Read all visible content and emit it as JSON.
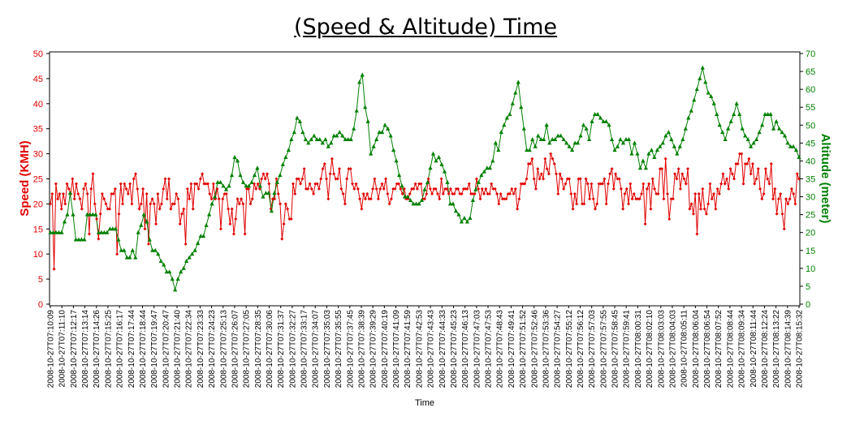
{
  "chart_data": {
    "type": "line",
    "title": "(Speed & Altitude) Time",
    "xlabel": "Time",
    "ylabel_left": "Speed (KMH)",
    "ylabel_right": "Altitude (meter)",
    "ylim_left": [
      0,
      50
    ],
    "ylim_right": [
      0,
      70
    ],
    "yticks_left": [
      0,
      5,
      10,
      15,
      20,
      25,
      30,
      35,
      40,
      45,
      50
    ],
    "yticks_right": [
      0,
      5,
      10,
      15,
      20,
      25,
      30,
      35,
      40,
      45,
      50,
      55,
      60,
      65,
      70
    ],
    "grid": false,
    "colors": {
      "speed": "#e00000",
      "altitude": "#008000"
    },
    "x_tick_labels": [
      "2008-10-27T07:10:09",
      "2008-10-27T07:11:10",
      "2008-10-27T07:12:17",
      "2008-10-27T07:13:14",
      "2008-10-27T07:14:26",
      "2008-10-27T07:15:25",
      "2008-10-27T07:16:17",
      "2008-10-27T07:17:44",
      "2008-10-27T07:18:44",
      "2008-10-27T07:19:47",
      "2008-10-27T07:20:47",
      "2008-10-27T07:21:40",
      "2008-10-27T07:22:34",
      "2008-10-27T07:23:33",
      "2008-10-27T07:24:23",
      "2008-10-27T07:25:13",
      "2008-10-27T07:26:07",
      "2008-10-27T07:27:05",
      "2008-10-27T07:28:35",
      "2008-10-27T07:30:06",
      "2008-10-27T07:31:37",
      "2008-10-27T07:32:27",
      "2008-10-27T07:33:17",
      "2008-10-27T07:34:07",
      "2008-10-27T07:35:03",
      "2008-10-27T07:35:55",
      "2008-10-27T07:37:45",
      "2008-10-27T07:38:39",
      "2008-10-27T07:39:29",
      "2008-10-27T07:40:19",
      "2008-10-27T07:41:09",
      "2008-10-27T07:41:59",
      "2008-10-27T07:42:53",
      "2008-10-27T07:43:43",
      "2008-10-27T07:44:33",
      "2008-10-27T07:45:23",
      "2008-10-27T07:46:13",
      "2008-10-27T07:47:03",
      "2008-10-27T07:47:53",
      "2008-10-27T07:48:43",
      "2008-10-27T07:49:41",
      "2008-10-27T07:51:52",
      "2008-10-27T07:52:46",
      "2008-10-27T07:53:36",
      "2008-10-27T07:54:27",
      "2008-10-27T07:55:12",
      "2008-10-27T07:56:12",
      "2008-10-27T07:57:03",
      "2008-10-27T07:57:55",
      "2008-10-27T07:58:45",
      "2008-10-27T07:59:41",
      "2008-10-27T08:00:31",
      "2008-10-27T08:02:10",
      "2008-10-27T08:03:03",
      "2008-10-27T08:04:03",
      "2008-10-27T08:05:11",
      "2008-10-27T08:06:04",
      "2008-10-27T08:06:54",
      "2008-10-27T08:07:52",
      "2008-10-27T08:08:44",
      "2008-10-27T08:09:34",
      "2008-10-27T08:11:44",
      "2008-10-27T08:12:24",
      "2008-10-27T08:13:22",
      "2008-10-27T08:14:39",
      "2008-10-27T08:15:32"
    ],
    "series": [
      {
        "name": "Speed (KMH)",
        "axis": "left",
        "marker": "diamond",
        "values": [
          20,
          22,
          7,
          24,
          21,
          22,
          19,
          22,
          20,
          24,
          23,
          22,
          25,
          21,
          24,
          22,
          21,
          19,
          23,
          24,
          22,
          14,
          23,
          26,
          20,
          17,
          13,
          18,
          22,
          21,
          20,
          19,
          19,
          22,
          22,
          23,
          10,
          18,
          24,
          20,
          24,
          23,
          22,
          24,
          20,
          25,
          26,
          23,
          19,
          20,
          23,
          15,
          22,
          12,
          20,
          21,
          20,
          16,
          22,
          19,
          20,
          23,
          25,
          21,
          25,
          19,
          20,
          20,
          22,
          21,
          16,
          18,
          19,
          12,
          23,
          21,
          24,
          19,
          24,
          24,
          23,
          25,
          26,
          24,
          24,
          24,
          22,
          21,
          24,
          21,
          23,
          21,
          15,
          21,
          22,
          22,
          19,
          16,
          19,
          14,
          17,
          21,
          20,
          21,
          20,
          14,
          23,
          23,
          20,
          21,
          24,
          23,
          24,
          23,
          25,
          26,
          25,
          26,
          24,
          19,
          21,
          21,
          25,
          22,
          20,
          13,
          16,
          20,
          19,
          17,
          17,
          24,
          22,
          25,
          25,
          24,
          25,
          27,
          23,
          23,
          24,
          23,
          22,
          24,
          24,
          23,
          25,
          27,
          28,
          25,
          21,
          26,
          29,
          26,
          25,
          25,
          27,
          23,
          22,
          20,
          25,
          27,
          27,
          24,
          23,
          24,
          23,
          21,
          19,
          22,
          21,
          22,
          21,
          21,
          23,
          25,
          23,
          21,
          23,
          24,
          23,
          25,
          22,
          20,
          21,
          23,
          23,
          24,
          24,
          23,
          22,
          23,
          21,
          21,
          22,
          23,
          23,
          24,
          23,
          24,
          24,
          21,
          21,
          22,
          25,
          23,
          22,
          23,
          23,
          22,
          21,
          25,
          22,
          23,
          23,
          22,
          23,
          22,
          22,
          23,
          23,
          22,
          22,
          23,
          23,
          23,
          24,
          22,
          22,
          22,
          25,
          23,
          21,
          23,
          22,
          23,
          22,
          22,
          24,
          23,
          23,
          22,
          20,
          22,
          21,
          21,
          21,
          22,
          22,
          23,
          22,
          23,
          19,
          21,
          24,
          24,
          24,
          25,
          28,
          28,
          29,
          25,
          23,
          27,
          25,
          26,
          25,
          29,
          27,
          26,
          30,
          29,
          28,
          26,
          22,
          26,
          25,
          23,
          24,
          25,
          25,
          22,
          19,
          22,
          20,
          25,
          25,
          20,
          20,
          25,
          24,
          21,
          24,
          21,
          19,
          20,
          24,
          24,
          24,
          25,
          20,
          24,
          26,
          27,
          23,
          26,
          25,
          25,
          23,
          19,
          22,
          23,
          20,
          24,
          21,
          22,
          21,
          21,
          21,
          22,
          24,
          16,
          23,
          24,
          19,
          25,
          23,
          22,
          22,
          27,
          27,
          21,
          29,
          22,
          17,
          21,
          21,
          26,
          25,
          27,
          23,
          26,
          25,
          24,
          27,
          19,
          20,
          18,
          22,
          14,
          22,
          19,
          23,
          19,
          18,
          20,
          24,
          21,
          22,
          19,
          23,
          22,
          24,
          26,
          24,
          25,
          23,
          27,
          26,
          25,
          28,
          28,
          30,
          30,
          24,
          28,
          28,
          29,
          26,
          28,
          24,
          25,
          27,
          23,
          21,
          22,
          27,
          25,
          24,
          28,
          21,
          23,
          18,
          21,
          22,
          18,
          15,
          21,
          20,
          21,
          23,
          22,
          20,
          26,
          25
        ]
      },
      {
        "name": "Altitude (meter)",
        "axis": "right",
        "marker": "triangle",
        "values": [
          20,
          20,
          20,
          20,
          20,
          23,
          25,
          31,
          25,
          18,
          18,
          18,
          18,
          25,
          25,
          25,
          25,
          20,
          20,
          20,
          20,
          21,
          21,
          21,
          18,
          15,
          15,
          13,
          13,
          15,
          13,
          20,
          22,
          25,
          23,
          18,
          15,
          15,
          14,
          12,
          11,
          9,
          9,
          7,
          4,
          7,
          9,
          10,
          12,
          13,
          14,
          15,
          17,
          19,
          19,
          22,
          25,
          28,
          30,
          34,
          34,
          33,
          32,
          33,
          36,
          41,
          40,
          36,
          34,
          33,
          33,
          34,
          36,
          38,
          33,
          30,
          31,
          31,
          26,
          31,
          34,
          36,
          39,
          41,
          43,
          46,
          48,
          52,
          51,
          48,
          46,
          45,
          46,
          47,
          46,
          46,
          45,
          46,
          44,
          45,
          47,
          47,
          48,
          47,
          46,
          46,
          46,
          49,
          54,
          62,
          64,
          55,
          51,
          42,
          44,
          46,
          48,
          48,
          50,
          49,
          47,
          43,
          40,
          36,
          33,
          30,
          30,
          29,
          28,
          28,
          28,
          29,
          32,
          34,
          38,
          42,
          40,
          41,
          39,
          37,
          34,
          28,
          28,
          26,
          25,
          23,
          24,
          23,
          24,
          29,
          32,
          34,
          36,
          37,
          38,
          38,
          40,
          45,
          43,
          48,
          50,
          52,
          53,
          56,
          59,
          62,
          55,
          49,
          43,
          43,
          46,
          44,
          47,
          46,
          46,
          50,
          45,
          46,
          46,
          47,
          47,
          46,
          45,
          44,
          43,
          45,
          45,
          47,
          50,
          49,
          46,
          51,
          53,
          53,
          52,
          51,
          51,
          50,
          46,
          43,
          44,
          46,
          45,
          46,
          46,
          42,
          45,
          42,
          38,
          40,
          38,
          42,
          43,
          41,
          43,
          44,
          45,
          47,
          48,
          46,
          44,
          42,
          44,
          46,
          49,
          52,
          54,
          57,
          60,
          63,
          66,
          62,
          59,
          58,
          56,
          53,
          50,
          48,
          46,
          49,
          51,
          53,
          56,
          53,
          49,
          47,
          46,
          44,
          45,
          46,
          48,
          50,
          53,
          53,
          53,
          49,
          51,
          49,
          48,
          47,
          45,
          44,
          44,
          43,
          41
        ]
      }
    ]
  }
}
